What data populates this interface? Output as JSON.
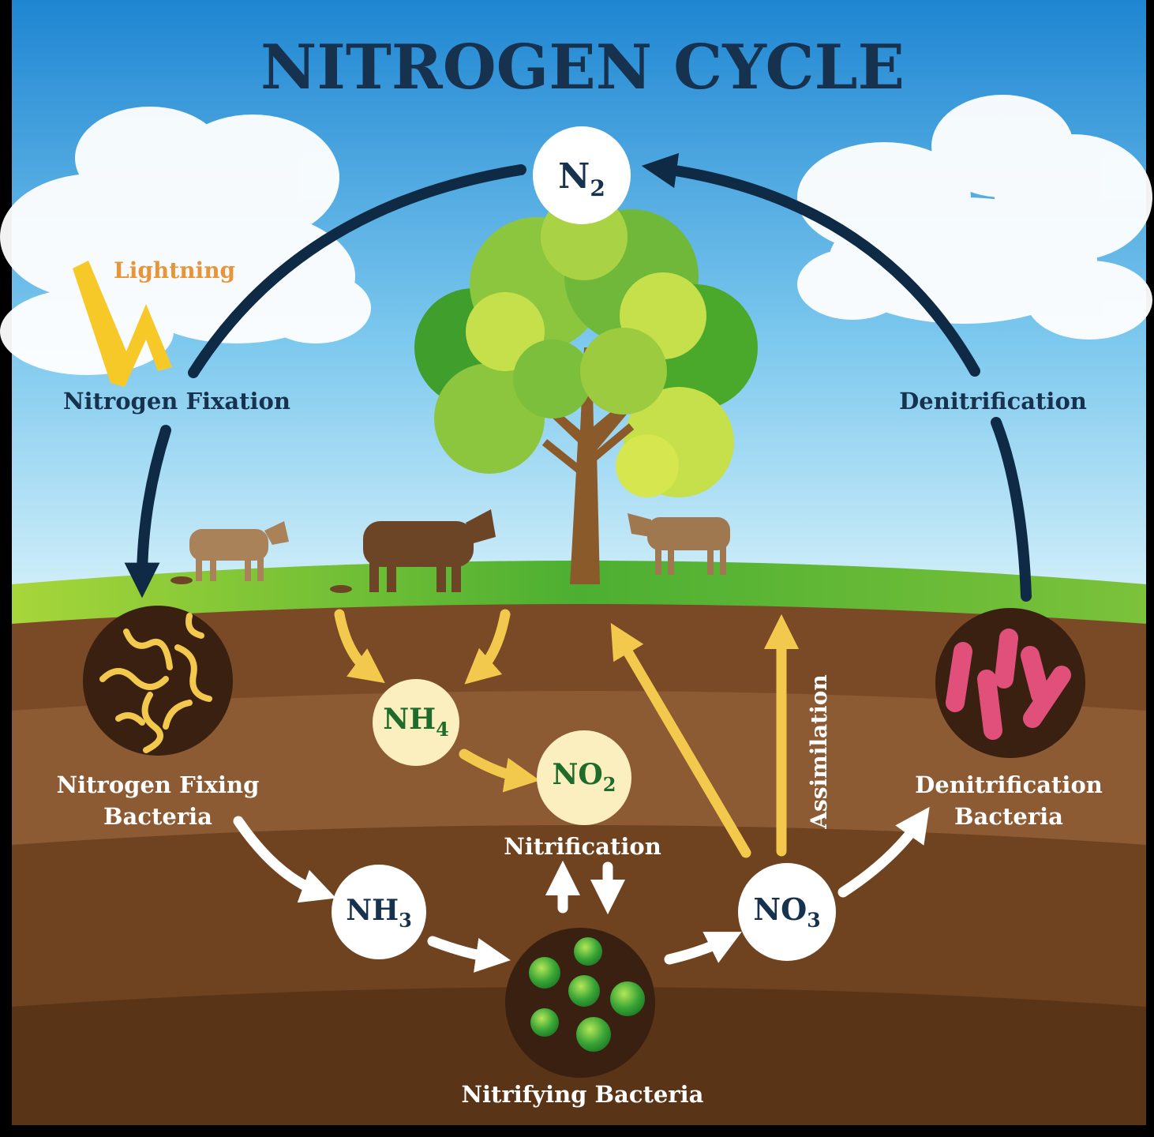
{
  "title": "NITROGEN CYCLE",
  "compounds": {
    "n2": {
      "base": "N",
      "sub": "2"
    },
    "nh4": {
      "base": "NH",
      "sub": "4"
    },
    "no2": {
      "base": "NO",
      "sub": "2"
    },
    "nh3": {
      "base": "NH",
      "sub": "3"
    },
    "no3": {
      "base": "NO",
      "sub": "3"
    }
  },
  "labels": {
    "lightning": "Lightning",
    "nitrogen_fixation": "Nitrogen Fixation",
    "denitrification": "Denitrification",
    "nitrogen_fixing_bacteria": [
      "Nitrogen Fixing",
      "Bacteria"
    ],
    "denitrification_bacteria": [
      "Denitrification",
      "Bacteria"
    ],
    "nitrification": "Nitrification",
    "nitrifying_bacteria": "Nitrifying Bacteria",
    "assimilation": "Assimilation"
  }
}
